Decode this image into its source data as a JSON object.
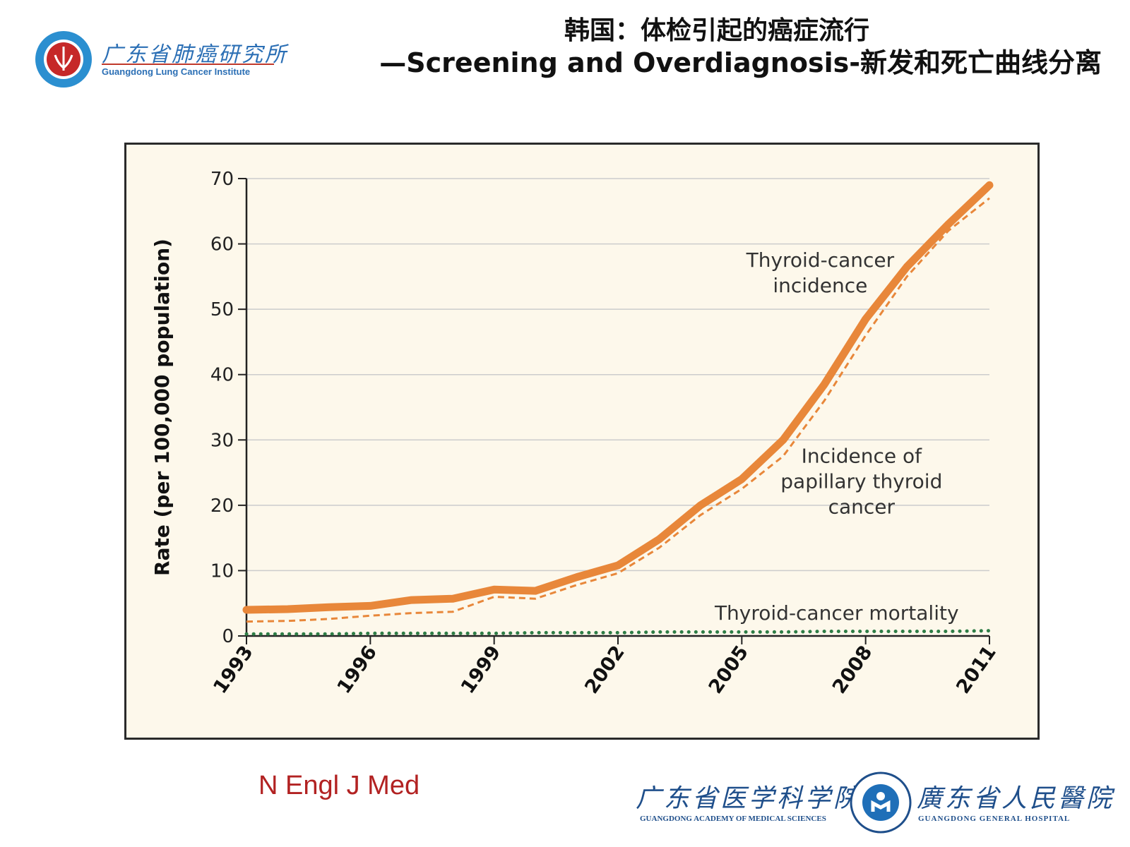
{
  "title": {
    "line1": "韩国：体检引起的癌症流行",
    "line2": "—Screening and Overdiagnosis-新发和死亡曲线分离"
  },
  "logo_top": {
    "name_cn": "广东省肺癌研究所",
    "name_en": "Guangdong Lung Cancer Institute"
  },
  "source": "N Engl J Med",
  "logo_bottom": {
    "left_cn": "广东省医学科学院",
    "left_en": "GUANGDONG ACADEMY OF MEDICAL SCIENCES",
    "right_cn": "廣东省人民醫院",
    "right_en": "GUANGDONG GENERAL HOSPITAL"
  },
  "colors": {
    "incidence": "#e8873a",
    "papillary": "#e8873a",
    "mortality": "#2e7d46",
    "plot_bg": "#fdf8eb",
    "grid": "#cccccc"
  },
  "chart_data": {
    "type": "line",
    "title": "",
    "xlabel": "",
    "ylabel": "Rate (per 100,000 population)",
    "ylim": [
      0,
      70
    ],
    "xlim": [
      1993,
      2011
    ],
    "yticks": [
      "0",
      "10",
      "20",
      "30",
      "40",
      "50",
      "60",
      "70"
    ],
    "xticks": [
      "1993",
      "1996",
      "1999",
      "2002",
      "2005",
      "2008",
      "2011"
    ],
    "grid": true,
    "x": [
      1993,
      1994,
      1995,
      1996,
      1997,
      1998,
      1999,
      2000,
      2001,
      2002,
      2003,
      2004,
      2005,
      2006,
      2007,
      2008,
      2009,
      2010,
      2011
    ],
    "series": [
      {
        "name": "Thyroid-cancer incidence",
        "style": "solid-thick",
        "values": [
          4.0,
          4.1,
          4.4,
          4.6,
          5.5,
          5.7,
          7.1,
          6.9,
          9.0,
          10.8,
          14.8,
          20.0,
          24.0,
          30.0,
          38.5,
          48.5,
          56.5,
          63.0,
          69.0
        ]
      },
      {
        "name": "Incidence of papillary thyroid cancer",
        "style": "dashed",
        "values": [
          2.2,
          2.3,
          2.6,
          3.1,
          3.5,
          3.7,
          6.0,
          5.7,
          7.8,
          9.6,
          13.5,
          18.5,
          22.5,
          27.5,
          36.0,
          46.0,
          55.0,
          62.0,
          67.0
        ]
      },
      {
        "name": "Thyroid-cancer mortality",
        "style": "dotted",
        "values": [
          0.3,
          0.3,
          0.3,
          0.4,
          0.4,
          0.4,
          0.4,
          0.5,
          0.5,
          0.5,
          0.6,
          0.6,
          0.6,
          0.6,
          0.7,
          0.7,
          0.7,
          0.7,
          0.8
        ]
      }
    ],
    "annotations": [
      {
        "lines": [
          "Thyroid-cancer",
          "incidence"
        ],
        "x": 2006.9,
        "y": 56.5
      },
      {
        "lines": [
          "Incidence of",
          "papillary thyroid",
          "cancer"
        ],
        "x": 2007.9,
        "y": 26.5
      },
      {
        "lines": [
          "Thyroid-cancer mortality"
        ],
        "x": 2007.3,
        "y": 2.5
      }
    ]
  }
}
